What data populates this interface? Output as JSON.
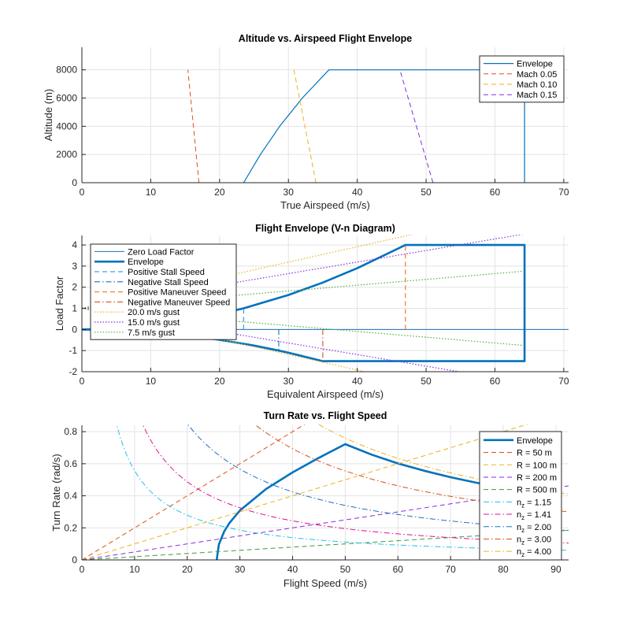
{
  "chart_data": [
    {
      "type": "line",
      "title": "Altitude vs. Airspeed Flight Envelope",
      "xlabel": "True Airspeed (m/s)",
      "ylabel": "Altitude (m)",
      "xlim": [
        0,
        70.7
      ],
      "ylim": [
        0,
        9600
      ],
      "xticks": [
        0,
        10,
        20,
        30,
        40,
        50,
        60,
        70
      ],
      "yticks": [
        0,
        2000,
        4000,
        6000,
        8000
      ],
      "grid": true,
      "legend_position": "top-right",
      "series": [
        {
          "name": "Envelope",
          "color": "#0072BD",
          "style": "-",
          "width": 1.2,
          "x": [
            23.5,
            25.93,
            28.74,
            32.02,
            35.89,
            64.3,
            64.3
          ],
          "y": [
            0,
            2000,
            4000,
            6000,
            8000,
            8000,
            0
          ]
        },
        {
          "name": "Mach 0.05",
          "color": "#D95319",
          "style": "--",
          "width": 1,
          "x": [
            17.0,
            15.4
          ],
          "y": [
            0,
            8000
          ]
        },
        {
          "name": "Mach 0.10",
          "color": "#EDB120",
          "style": "--",
          "width": 1,
          "x": [
            34.0,
            30.8
          ],
          "y": [
            0,
            8000
          ]
        },
        {
          "name": "Mach 0.15",
          "color": "#7E2FE0",
          "style": "--",
          "width": 1,
          "x": [
            51.0,
            46.2
          ],
          "y": [
            0,
            8000
          ]
        }
      ]
    },
    {
      "type": "line",
      "title": "Flight Envelope (V-n Diagram)",
      "xlabel": "Equivalent Airspeed (m/s)",
      "ylabel": "Load Factor",
      "xlim": [
        0,
        70.7
      ],
      "ylim": [
        -2,
        4.45
      ],
      "xticks": [
        0,
        10,
        20,
        30,
        40,
        50,
        60,
        70
      ],
      "yticks": [
        -2,
        -1,
        0,
        1,
        2,
        3,
        4
      ],
      "grid": true,
      "legend_position": "top-left",
      "series": [
        {
          "name": "Zero Load Factor",
          "color": "#1F6FBF",
          "style": "-",
          "width": 1,
          "x": [
            0,
            70.7
          ],
          "y": [
            0,
            0
          ]
        },
        {
          "name": "Envelope",
          "color": "#0072BD",
          "style": "-",
          "width": 2.6,
          "x": [
            0,
            5,
            10,
            15,
            20,
            23.5,
            30,
            35,
            40,
            47,
            64.3,
            64.3,
            35,
            30,
            28.6,
            25,
            20,
            15,
            10,
            5,
            0
          ],
          "y": [
            0,
            0.045,
            0.181,
            0.407,
            0.724,
            1,
            1.63,
            2.22,
            2.9,
            4,
            4,
            -1.5,
            -1.5,
            -1.1,
            -1,
            -0.764,
            -0.489,
            -0.275,
            -0.122,
            -0.031,
            0
          ]
        },
        {
          "name": "Positive Stall Speed",
          "color": "#4D9DE0",
          "style": "--",
          "width": 1.3,
          "x": [
            23.5,
            23.5
          ],
          "y": [
            0,
            1
          ]
        },
        {
          "name": "Negative Stall Speed",
          "color": "#1F6FBF",
          "style": "-.",
          "width": 1.1,
          "x": [
            28.6,
            28.6
          ],
          "y": [
            0,
            -1
          ]
        },
        {
          "name": "Positive Maneuver Speed",
          "color": "#F08040",
          "style": "--",
          "width": 1.3,
          "x": [
            47,
            47
          ],
          "y": [
            0,
            4
          ]
        },
        {
          "name": "Negative Maneuver Speed",
          "color": "#D95319",
          "style": "-.",
          "width": 1.1,
          "x": [
            35,
            35
          ],
          "y": [
            0,
            -1.5
          ]
        },
        {
          "name": "20.0 m/s gust",
          "color": "#EDB120",
          "style": ":",
          "width": 1.2,
          "x": [
            0,
            48.4,
            null,
            0,
            41.1
          ],
          "y": [
            1,
            4.53,
            null,
            1,
            -2
          ]
        },
        {
          "name": "15.0 m/s gust",
          "color": "#8B2BE2",
          "style": ":",
          "width": 1.2,
          "x": [
            0,
            64.3,
            null,
            0,
            54.8
          ],
          "y": [
            1,
            4.52,
            null,
            1,
            -2
          ]
        },
        {
          "name": "7.5 m/s gust",
          "color": "#4FB040",
          "style": ":",
          "width": 1.2,
          "x": [
            0,
            64.3,
            null,
            0,
            64.3
          ],
          "y": [
            1,
            2.76,
            null,
            1,
            -0.76
          ]
        }
      ]
    },
    {
      "type": "line",
      "title": "Turn Rate vs. Flight Speed",
      "xlabel": "Flight Speed (m/s)",
      "ylabel": "Turn Rate (rad/s)",
      "xlim": [
        0,
        92.4
      ],
      "ylim": [
        0,
        0.84
      ],
      "xticks": [
        0,
        10,
        20,
        30,
        40,
        50,
        60,
        70,
        80,
        90
      ],
      "yticks": [
        0,
        0.2,
        0.4,
        0.6,
        0.8
      ],
      "grid": true,
      "legend_position": "top-right",
      "series": [
        {
          "name": "Envelope",
          "color": "#0072BD",
          "style": "-",
          "width": 2.6,
          "x": [
            25.6,
            26,
            27,
            28,
            30,
            35,
            40,
            45,
            50,
            55,
            60,
            65,
            70,
            75,
            80,
            84,
            84
          ],
          "y": [
            0,
            0.096,
            0.177,
            0.23,
            0.308,
            0.443,
            0.546,
            0.637,
            0.722,
            0.657,
            0.602,
            0.556,
            0.516,
            0.481,
            0.451,
            0.43,
            0
          ]
        },
        {
          "name": "R = 50 m",
          "color": "#D95319",
          "style": "--",
          "width": 1,
          "R": 50
        },
        {
          "name": "R = 100 m",
          "color": "#EDB120",
          "style": "--",
          "width": 1,
          "R": 100
        },
        {
          "name": "R = 200 m",
          "color": "#8B2BE2",
          "style": "--",
          "width": 1,
          "R": 200
        },
        {
          "name": "R = 500 m",
          "color": "#3E9A3E",
          "style": "--",
          "width": 1,
          "R": 500
        },
        {
          "name": "n_z = 1.15",
          "color": "#22C0EE",
          "style": "-.",
          "width": 1,
          "nz": 1.15
        },
        {
          "name": "n_z = 1.41",
          "color": "#E0108F",
          "style": "-.",
          "width": 1,
          "nz": 1.41
        },
        {
          "name": "n_z = 2.00",
          "color": "#1F6FBF",
          "style": "-.",
          "width": 1,
          "nz": 2.0
        },
        {
          "name": "n_z = 3.00",
          "color": "#D95319",
          "style": "-.",
          "width": 1,
          "nz": 3.0
        },
        {
          "name": "n_z = 4.00",
          "color": "#EDB120",
          "style": "-.",
          "width": 1,
          "nz": 4.0
        }
      ]
    }
  ]
}
